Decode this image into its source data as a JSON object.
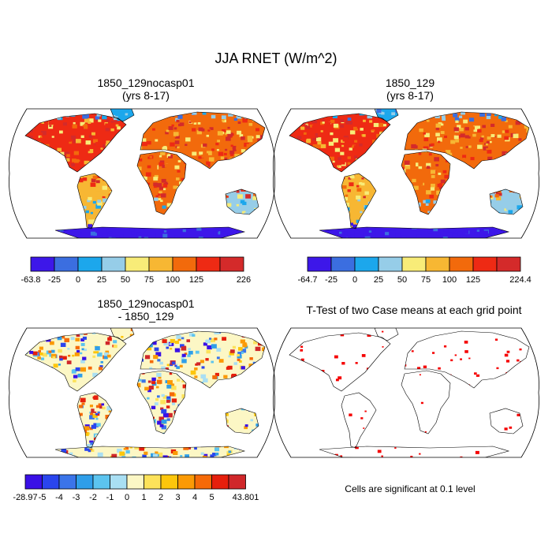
{
  "title": "JJA RNET (W/m^2)",
  "panels": [
    {
      "id": "p1",
      "title_line1": "1850_129nocasp01",
      "title_line2": "(yrs 8-17)",
      "colorbar": {
        "labels": [
          "-63.8",
          "-25",
          "0",
          "25",
          "50",
          "75",
          "100",
          "125",
          "226"
        ],
        "colors": [
          "#3d17e9",
          "#3b6ee0",
          "#1ca7ec",
          "#96cde8",
          "#f8ec78",
          "#f7b733",
          "#f26a0c",
          "#ee2a14",
          "#d42a2a"
        ]
      }
    },
    {
      "id": "p2",
      "title_line1": "1850_129",
      "title_line2": "(yrs 8-17)",
      "colorbar": {
        "labels": [
          "-64.7",
          "-25",
          "0",
          "25",
          "50",
          "75",
          "100",
          "125",
          "224.4"
        ],
        "colors": [
          "#3d17e9",
          "#3b6ee0",
          "#1ca7ec",
          "#96cde8",
          "#f8ec78",
          "#f7b733",
          "#f26a0c",
          "#ee2a14",
          "#d42a2a"
        ]
      }
    },
    {
      "id": "p3",
      "title_line1": "1850_129nocasp01",
      "title_line2": "- 1850_129",
      "colorbar": {
        "labels": [
          "-28.97",
          "-5",
          "-4",
          "-3",
          "-2",
          "-1",
          "0",
          "1",
          "2",
          "3",
          "4",
          "5",
          "43.801"
        ],
        "colors": [
          "#3a10e6",
          "#2a45ee",
          "#3b74e9",
          "#2f9ee9",
          "#5cc4ef",
          "#a9dff3",
          "#fcf7c5",
          "#fde25a",
          "#fdc60c",
          "#fb9a05",
          "#f56a08",
          "#e61f0c",
          "#d0272a"
        ]
      }
    },
    {
      "id": "p4",
      "title": "T-Test of two Case means at each grid point",
      "note": "Cells are significant at 0.1 level"
    }
  ]
}
